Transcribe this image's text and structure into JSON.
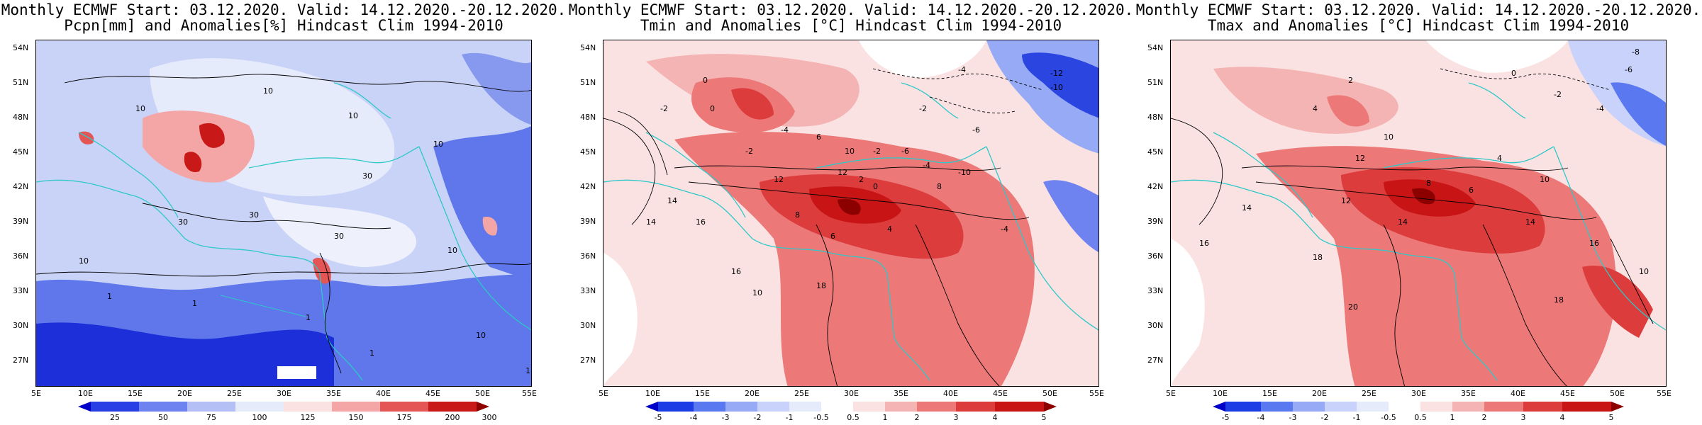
{
  "panels": [
    {
      "id": "pcpn",
      "title_line1": "Monthly ECMWF Start: 03.12.2020. Valid: 14.12.2020.-20.12.2020.",
      "title_line2": "Pcpn[mm] and Anomalies[%] Hindcast Clim 1994-2010",
      "colorbar_labels": [
        "25",
        "50",
        "75",
        "100",
        "125",
        "150",
        "175",
        "200",
        "300"
      ],
      "colorbar_colors": [
        "#0000c8",
        "#2a3ee6",
        "#6e82f0",
        "#b4bff6",
        "#e6ebfc",
        "#fbe2e2",
        "#f4a5a5",
        "#e45656",
        "#c81818",
        "#8e0000"
      ],
      "contour_labels": [
        "10",
        "10",
        "10",
        "30",
        "30",
        "30",
        "10",
        "1",
        "1",
        "1",
        "10",
        "10",
        "1",
        "1",
        "30",
        "10"
      ]
    },
    {
      "id": "tmin",
      "title_line1": "Monthly ECMWF Start: 03.12.2020. Valid: 14.12.2020.-20.12.2020.",
      "title_line2": "Tmin and Anomalies [°C] Hindcast Clim 1994-2010",
      "colorbar_labels": [
        "-5",
        "-4",
        "-3",
        "-2",
        "-1",
        "-0.5",
        "0.5",
        "1",
        "2",
        "3",
        "4",
        "5"
      ],
      "colorbar_colors": [
        "#0000c8",
        "#1e3ce6",
        "#5a78f0",
        "#96aaf5",
        "#c8d2fa",
        "#e6ebfc",
        "#ffffff",
        "#fbe2e2",
        "#f5b4b4",
        "#ec7878",
        "#dc3c3c",
        "#c81414",
        "#8c0000"
      ],
      "contour_labels": [
        "0",
        "-2",
        "-4",
        "-6",
        "-12",
        "-10",
        "-2",
        "0",
        "-4",
        "-2",
        "6",
        "10",
        "14",
        "12",
        "-2",
        "-6",
        "-4",
        "2",
        "8",
        "-10",
        "16",
        "14",
        "18",
        "16",
        "10",
        "12",
        "-4",
        "0",
        "4",
        "6",
        "8"
      ]
    },
    {
      "id": "tmax",
      "title_line1": "Monthly ECMWF Start: 03.12.2020. Valid: 14.12.2020.-20.12.2020.",
      "title_line2": "Tmax and Anomalies [°C] Hindcast Clim 1994-2010",
      "colorbar_labels": [
        "-5",
        "-4",
        "-3",
        "-2",
        "-1",
        "-0.5",
        "0.5",
        "1",
        "2",
        "3",
        "4",
        "5"
      ],
      "colorbar_colors": [
        "#0000c8",
        "#1e3ce6",
        "#5a78f0",
        "#96aaf5",
        "#c8d2fa",
        "#e6ebfc",
        "#ffffff",
        "#fbe2e2",
        "#f5b4b4",
        "#ec7878",
        "#dc3c3c",
        "#c81414",
        "#8c0000"
      ],
      "contour_labels": [
        "0",
        "-2",
        "-4",
        "-6",
        "-8",
        "2",
        "4",
        "10",
        "12",
        "14",
        "16",
        "18",
        "20",
        "12",
        "14",
        "8",
        "6",
        "4",
        "10",
        "16",
        "18",
        "14",
        "10"
      ]
    }
  ],
  "lat_labels": [
    "54N",
    "51N",
    "48N",
    "45N",
    "42N",
    "39N",
    "36N",
    "33N",
    "30N",
    "27N"
  ],
  "lon_labels": [
    "5E",
    "10E",
    "15E",
    "20E",
    "25E",
    "30E",
    "35E",
    "40E",
    "45E",
    "50E",
    "55E"
  ]
}
